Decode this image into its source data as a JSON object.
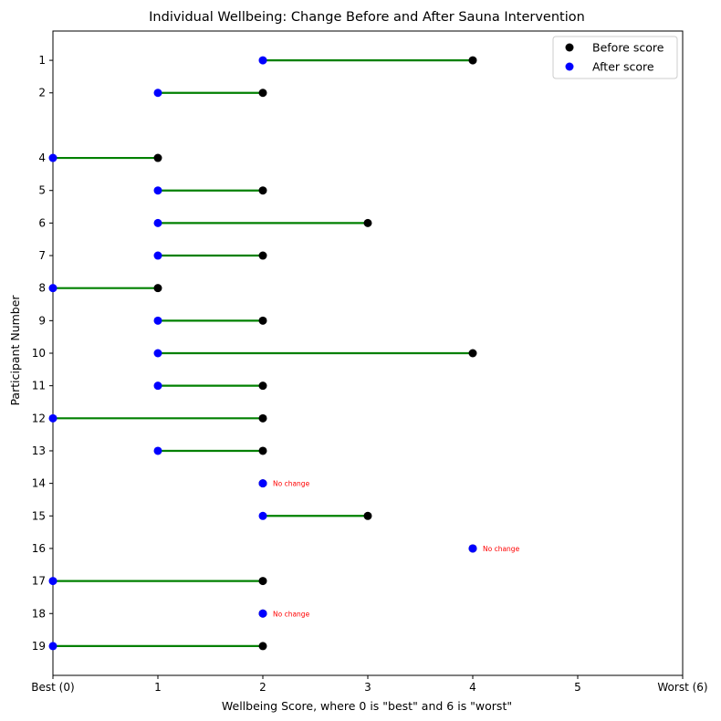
{
  "chart_data": {
    "type": "dumbbell",
    "title": "Individual Wellbeing: Change Before and After Sauna Intervention",
    "xlabel": "Wellbeing Score, where 0 is \"best\" and 6 is \"worst\"",
    "ylabel": "Participant Number",
    "xlim": [
      0,
      6
    ],
    "ylim_participant": [
      0.1,
      19.9
    ],
    "x_ticks": [
      {
        "value": 0,
        "label": "Best (0)"
      },
      {
        "value": 1,
        "label": "1"
      },
      {
        "value": 2,
        "label": "2"
      },
      {
        "value": 3,
        "label": "3"
      },
      {
        "value": 4,
        "label": "4"
      },
      {
        "value": 5,
        "label": "5"
      },
      {
        "value": 6,
        "label": "Worst (6)"
      }
    ],
    "participants": [
      {
        "id": 1,
        "label": "1",
        "before": 4,
        "after": 2
      },
      {
        "id": 2,
        "label": "2",
        "before": 2,
        "after": 1
      },
      {
        "id": 4,
        "label": "4",
        "before": 1,
        "after": 0
      },
      {
        "id": 5,
        "label": "5",
        "before": 2,
        "after": 1
      },
      {
        "id": 6,
        "label": "6",
        "before": 3,
        "after": 1
      },
      {
        "id": 7,
        "label": "7",
        "before": 2,
        "after": 1
      },
      {
        "id": 8,
        "label": "8",
        "before": 1,
        "after": 0
      },
      {
        "id": 9,
        "label": "9",
        "before": 2,
        "after": 1
      },
      {
        "id": 10,
        "label": "10",
        "before": 4,
        "after": 1
      },
      {
        "id": 11,
        "label": "11",
        "before": 2,
        "after": 1
      },
      {
        "id": 12,
        "label": "12",
        "before": 2,
        "after": 0
      },
      {
        "id": 13,
        "label": "13",
        "before": 2,
        "after": 1
      },
      {
        "id": 14,
        "label": "14",
        "before": 2,
        "after": 2,
        "annotation": "No change"
      },
      {
        "id": 15,
        "label": "15",
        "before": 3,
        "after": 2
      },
      {
        "id": 16,
        "label": "16",
        "before": 4,
        "after": 4,
        "annotation": "No change"
      },
      {
        "id": 17,
        "label": "17",
        "before": 2,
        "after": 0
      },
      {
        "id": 18,
        "label": "18",
        "before": 2,
        "after": 2,
        "annotation": "No change"
      },
      {
        "id": 19,
        "label": "19",
        "before": 2,
        "after": 0
      }
    ],
    "legend": {
      "placement": "top-right",
      "entries": [
        {
          "name": "Before score",
          "color": "#000000"
        },
        {
          "name": "After score",
          "color": "#0000ff"
        }
      ]
    },
    "colors": {
      "before": "#000000",
      "after": "#0000ff",
      "connector": "#008000",
      "annotation": "#ff0000"
    },
    "grid": false
  }
}
